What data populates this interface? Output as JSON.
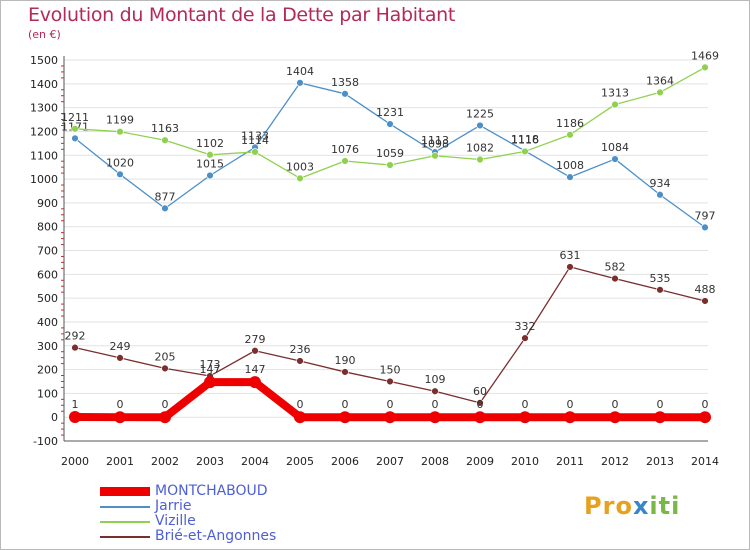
{
  "title": "Evolution du Montant de la Dette par Habitant",
  "unit": "(en €)",
  "logo": {
    "letters": [
      {
        "ch": "P",
        "color": "#e6a11f"
      },
      {
        "ch": "r",
        "color": "#e6a11f"
      },
      {
        "ch": "o",
        "color": "#e6a11f"
      },
      {
        "ch": "x",
        "color": "#3a86c8"
      },
      {
        "ch": "i",
        "color": "#7ab648"
      },
      {
        "ch": "t",
        "color": "#7ab648"
      },
      {
        "ch": "i",
        "color": "#7ab648"
      }
    ]
  },
  "chart_data": {
    "type": "line",
    "x": [
      "2000",
      "2001",
      "2002",
      "2003",
      "2004",
      "2005",
      "2006",
      "2007",
      "2008",
      "2009",
      "2010",
      "2011",
      "2012",
      "2013",
      "2014"
    ],
    "ylim": [
      -100,
      1500
    ],
    "yticks": [
      "-100",
      "0",
      "100",
      "200",
      "300",
      "400",
      "500",
      "600",
      "700",
      "800",
      "900",
      "1000",
      "1100",
      "1200",
      "1300",
      "1400",
      "1500"
    ],
    "grid": "horizontal",
    "legend_position": "bottom-left",
    "series": [
      {
        "name": "MONTCHABOUD",
        "color": "#ee0000",
        "values": [
          1,
          0,
          0,
          147,
          147,
          0,
          0,
          0,
          0,
          0,
          0,
          0,
          0,
          0,
          0
        ],
        "labels": [
          "1",
          "0",
          "0",
          "147",
          "147",
          "0",
          "0",
          "0",
          "0",
          "0",
          "0",
          "0",
          "0",
          "0",
          "0"
        ]
      },
      {
        "name": "Jarrie",
        "color": "#4d8fc7",
        "values": [
          1171,
          1020,
          877,
          1015,
          1133,
          1404,
          1358,
          1231,
          1113,
          1225,
          1118,
          1008,
          1084,
          934,
          797
        ],
        "labels": [
          "1171",
          "1020",
          "877",
          "1015",
          "1133",
          "1404",
          "1358",
          "1231",
          "1113",
          "1225",
          "1118",
          "1008",
          "1084",
          "934",
          "797"
        ]
      },
      {
        "name": "Vizille",
        "color": "#8fd14f",
        "values": [
          1211,
          1199,
          1163,
          1102,
          1114,
          1003,
          1076,
          1059,
          1098,
          1082,
          1116,
          1186,
          1313,
          1364,
          1469
        ],
        "labels": [
          "1211",
          "1199",
          "1163",
          "1102",
          "1114",
          "1003",
          "1076",
          "1059",
          "1098",
          "1082",
          "1116",
          "1186",
          "1313",
          "1364",
          "1469"
        ]
      },
      {
        "name": "Brié-et-Angonnes",
        "color": "#7a2e2e",
        "values": [
          292,
          249,
          205,
          173,
          279,
          236,
          190,
          150,
          109,
          60,
          332,
          631,
          582,
          535,
          488
        ],
        "labels": [
          "292",
          "249",
          "205",
          "173",
          "279",
          "236",
          "190",
          "150",
          "109",
          "60",
          "332",
          "631",
          "582",
          "535",
          "488"
        ]
      }
    ]
  }
}
